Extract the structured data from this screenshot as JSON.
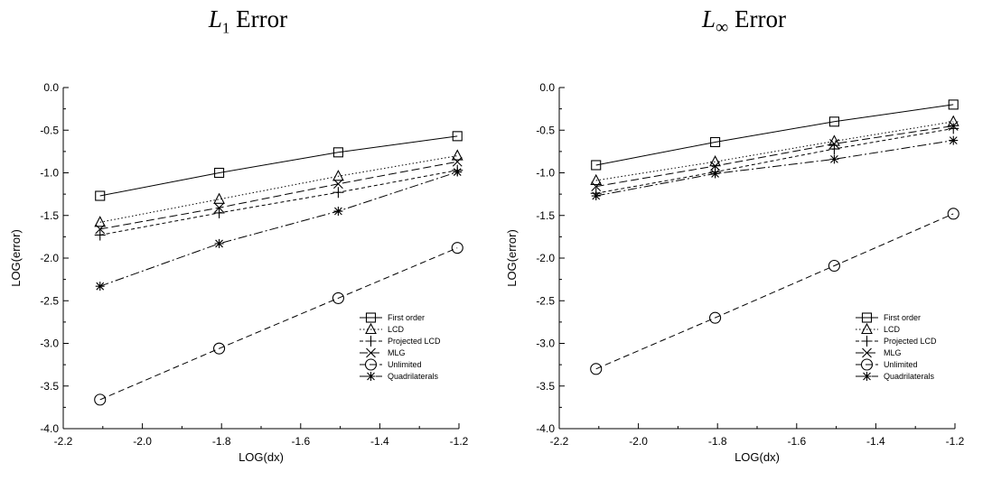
{
  "chart_data": [
    {
      "type": "line",
      "title_main": "L",
      "title_sub": "1",
      "title_rest": " Error",
      "xlabel": "LOG(dx)",
      "ylabel": "LOG(error)",
      "xlim": [
        -2.2,
        -1.2
      ],
      "ylim": [
        -4.0,
        0.0
      ],
      "xticks": [
        -2.2,
        -2.0,
        -1.8,
        -1.6,
        -1.4,
        -1.2
      ],
      "xtick_labels": [
        "-2.2",
        "-2.0",
        "-1.8",
        "-1.6",
        "-1.4",
        "-1.2"
      ],
      "yticks": [
        0.0,
        -0.5,
        -1.0,
        -1.5,
        -2.0,
        -2.5,
        -3.0,
        -3.5,
        -4.0
      ],
      "ytick_labels": [
        "0.0",
        "-0.5",
        "-1.0",
        "-1.5",
        "-2.0",
        "-2.5",
        "-3.0",
        "-3.5",
        "-4.0"
      ],
      "grid": false,
      "legend_position": "lower-right",
      "x": [
        -2.107,
        -1.806,
        -1.505,
        -1.204
      ],
      "series": [
        {
          "name": "First order",
          "marker": "square",
          "dash": "",
          "values": [
            -1.27,
            -1.0,
            -0.76,
            -0.57
          ]
        },
        {
          "name": "LCD",
          "marker": "triangle",
          "dash": "1.5,2.5",
          "values": [
            -1.58,
            -1.31,
            -1.04,
            -0.8
          ]
        },
        {
          "name": "Projected LCD",
          "marker": "plus",
          "dash": "4,3",
          "values": [
            -1.73,
            -1.47,
            -1.23,
            -0.97
          ]
        },
        {
          "name": "MLG",
          "marker": "x",
          "dash": "9,4",
          "values": [
            -1.66,
            -1.41,
            -1.13,
            -0.87
          ]
        },
        {
          "name": "Unlimited",
          "marker": "circle",
          "dash": "7,4",
          "values": [
            -3.66,
            -3.06,
            -2.47,
            -1.88
          ]
        },
        {
          "name": "Quadrilaterals",
          "marker": "star",
          "dash": "10,3,2,3",
          "values": [
            -2.33,
            -1.83,
            -1.45,
            -0.99
          ]
        }
      ]
    },
    {
      "type": "line",
      "title_main": "L",
      "title_sub": "∞",
      "title_rest": " Error",
      "xlabel": "LOG(dx)",
      "ylabel": "LOG(error)",
      "xlim": [
        -2.2,
        -1.2
      ],
      "ylim": [
        -4.0,
        0.0
      ],
      "xticks": [
        -2.2,
        -2.0,
        -1.8,
        -1.6,
        -1.4,
        -1.2
      ],
      "xtick_labels": [
        "-2.2",
        "-2.0",
        "-1.8",
        "-1.6",
        "-1.4",
        "-1.2"
      ],
      "yticks": [
        0.0,
        -0.5,
        -1.0,
        -1.5,
        -2.0,
        -2.5,
        -3.0,
        -3.5,
        -4.0
      ],
      "ytick_labels": [
        "0.0",
        "-0.5",
        "-1.0",
        "-1.5",
        "-2.0",
        "-2.5",
        "-3.0",
        "-3.5",
        "-4.0"
      ],
      "grid": false,
      "legend_position": "lower-right",
      "x": [
        -2.107,
        -1.806,
        -1.505,
        -1.204
      ],
      "series": [
        {
          "name": "First order",
          "marker": "square",
          "dash": "",
          "values": [
            -0.91,
            -0.64,
            -0.4,
            -0.2
          ]
        },
        {
          "name": "LCD",
          "marker": "triangle",
          "dash": "1.5,2.5",
          "values": [
            -1.09,
            -0.87,
            -0.63,
            -0.4
          ]
        },
        {
          "name": "Projected LCD",
          "marker": "plus",
          "dash": "4,3",
          "values": [
            -1.24,
            -0.99,
            -0.72,
            -0.48
          ]
        },
        {
          "name": "MLG",
          "marker": "x",
          "dash": "9,4",
          "values": [
            -1.16,
            -0.92,
            -0.66,
            -0.45
          ]
        },
        {
          "name": "Unlimited",
          "marker": "circle",
          "dash": "7,4",
          "values": [
            -3.3,
            -2.7,
            -2.09,
            -1.48
          ]
        },
        {
          "name": "Quadrilaterals",
          "marker": "star",
          "dash": "10,3,2,3",
          "values": [
            -1.27,
            -1.01,
            -0.84,
            -0.62
          ]
        }
      ]
    }
  ]
}
